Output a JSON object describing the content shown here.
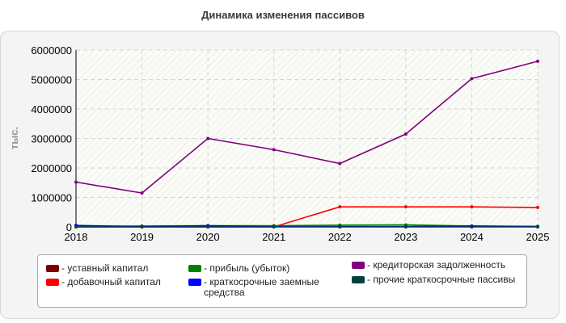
{
  "chart_data": {
    "type": "line",
    "title": "Динамика изменения пассивов",
    "ylabel": "тыс.",
    "xlabel": "",
    "x": [
      2018,
      2019,
      2020,
      2021,
      2022,
      2023,
      2024,
      2025
    ],
    "ylim": [
      0,
      6000000
    ],
    "yticks": [
      "0",
      "1000000",
      "2000000",
      "3000000",
      "4000000",
      "5000000",
      "6000000"
    ],
    "grid": true,
    "legend_position": "bottom",
    "series": [
      {
        "name": "- уставный капитал",
        "color": "#7a0000",
        "values": [
          10000,
          10000,
          10000,
          10000,
          10000,
          10000,
          10000,
          10000
        ]
      },
      {
        "name": "- добавочный капитал",
        "color": "#ff0000",
        "values": [
          0,
          0,
          0,
          0,
          680000,
          680000,
          680000,
          660000
        ]
      },
      {
        "name": "- прибыль (убыток)",
        "color": "#008000",
        "values": [
          20000,
          30000,
          40000,
          40000,
          60000,
          70000,
          30000,
          20000
        ]
      },
      {
        "name": "- краткосрочные заемные средства",
        "color": "#0000ff",
        "values": [
          50000,
          10000,
          40000,
          10000,
          10000,
          10000,
          30000,
          10000
        ]
      },
      {
        "name": "- кредиторская задолженность",
        "color": "#800080",
        "values": [
          1520000,
          1150000,
          3000000,
          2620000,
          2150000,
          3150000,
          5030000,
          5620000
        ]
      },
      {
        "name": "- прочие краткосрочные пассивы",
        "color": "#004040",
        "values": [
          0,
          0,
          0,
          0,
          0,
          0,
          0,
          0
        ]
      }
    ]
  }
}
